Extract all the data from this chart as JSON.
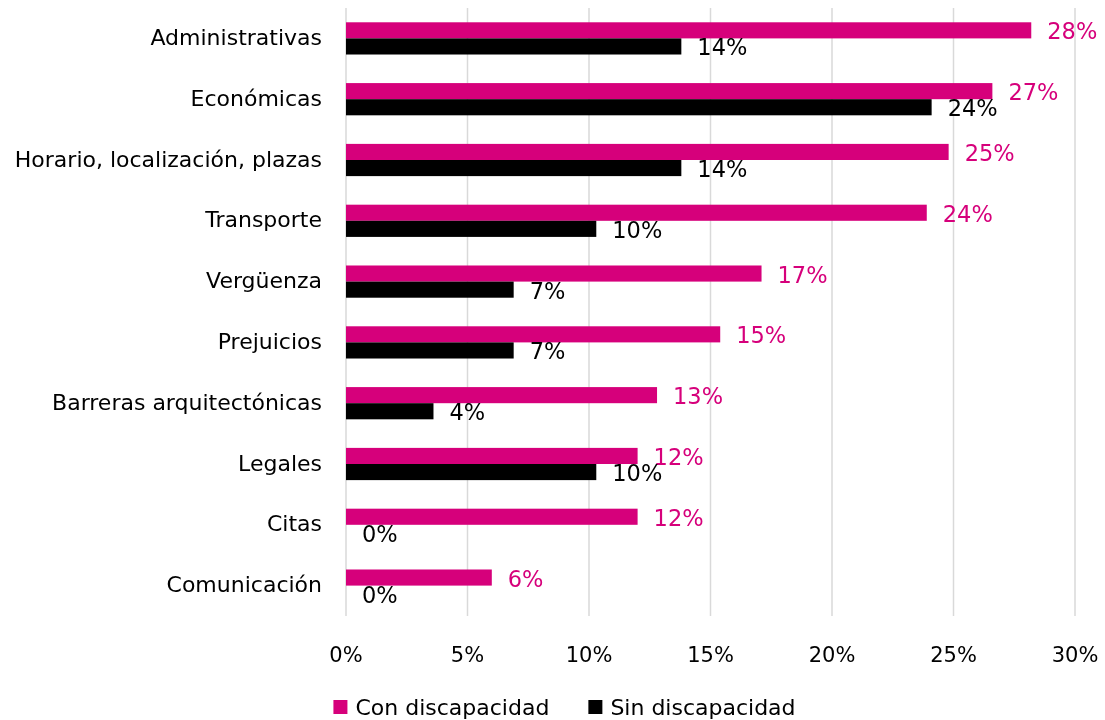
{
  "chart_data": {
    "type": "bar",
    "orientation": "horizontal",
    "categories": [
      "Administrativas",
      "Económicas",
      "Horario, localización, plazas",
      "Transporte",
      "Vergüenza",
      "Prejuicios",
      "Barreras arquitectónicas",
      "Legales",
      "Citas",
      "Comunicación"
    ],
    "series": [
      {
        "name": "Con discapacidad",
        "color": "#d6007b",
        "values": [
          28.2,
          26.6,
          24.8,
          23.9,
          17.1,
          15.4,
          12.8,
          12.0,
          12.0,
          6.0
        ],
        "value_labels": [
          "28%",
          "27%",
          "25%",
          "24%",
          "17%",
          "15%",
          "13%",
          "12%",
          "12%",
          "6%"
        ]
      },
      {
        "name": "Sin discapacidad",
        "color": "#000000",
        "values": [
          13.8,
          24.1,
          13.8,
          10.3,
          6.9,
          6.9,
          3.6,
          10.3,
          0,
          0
        ],
        "value_labels": [
          "14%",
          "24%",
          "14%",
          "10%",
          "7%",
          "7%",
          "4%",
          "10%",
          "0%",
          "0%"
        ]
      }
    ],
    "xlim": [
      0,
      30
    ],
    "xticks": [
      {
        "value": 0,
        "label": "0%"
      },
      {
        "value": 5,
        "label": "5%"
      },
      {
        "value": 10,
        "label": "10%"
      },
      {
        "value": 15,
        "label": "15%"
      },
      {
        "value": 20,
        "label": "20%"
      },
      {
        "value": 25,
        "label": "25%"
      },
      {
        "value": 30,
        "label": "30%"
      }
    ],
    "grid": "x",
    "legend": "bottom"
  }
}
